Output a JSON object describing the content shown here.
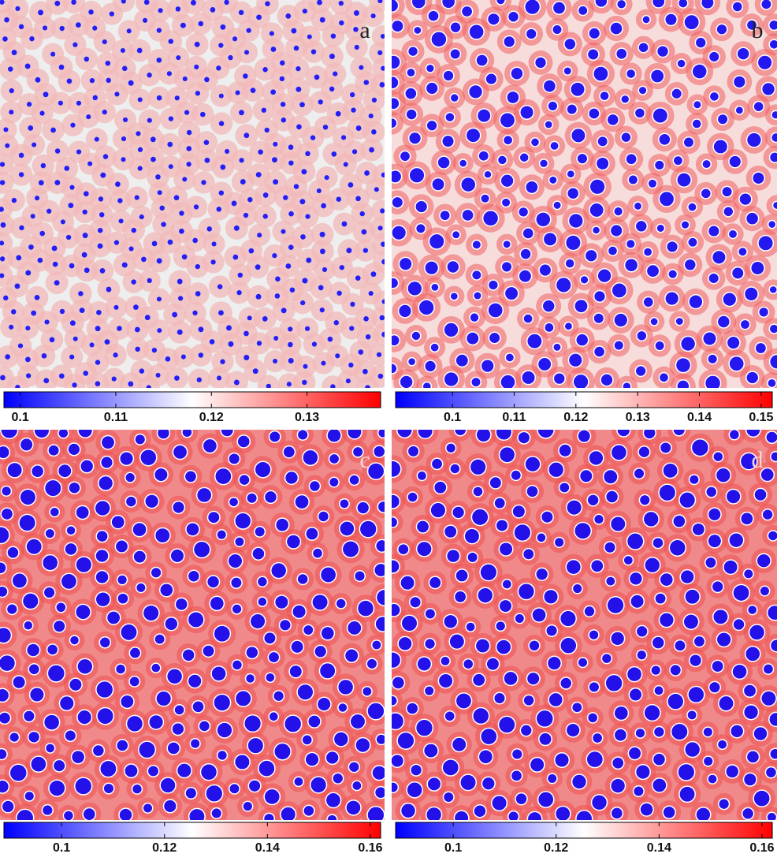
{
  "chart_data": [
    {
      "type": "heatmap",
      "label": "a",
      "colormap": [
        "#0000ff",
        "#ffffff",
        "#ff0000"
      ],
      "colorbar": {
        "lim": [
          0.0983,
          0.1377
        ],
        "ticks": [
          0.1,
          0.11,
          0.12,
          0.13
        ]
      }
    },
    {
      "type": "heatmap",
      "label": "b",
      "colormap": [
        "#0000ff",
        "#ffffff",
        "#ff0000"
      ],
      "colorbar": {
        "lim": [
          0.0908,
          0.1518
        ],
        "ticks": [
          0.1,
          0.11,
          0.12,
          0.13,
          0.14,
          0.15
        ]
      }
    },
    {
      "type": "heatmap",
      "label": "c",
      "colormap": [
        "#0000ff",
        "#ffffff",
        "#ff0000"
      ],
      "colorbar": {
        "lim": [
          0.0888,
          0.162
        ],
        "ticks": [
          0.1,
          0.12,
          0.14,
          0.16
        ]
      }
    },
    {
      "type": "heatmap",
      "label": "d",
      "colormap": [
        "#0000ff",
        "#ffffff",
        "#ff0000"
      ],
      "colorbar": {
        "lim": [
          0.0888,
          0.162
        ],
        "ticks": [
          0.1,
          0.12,
          0.14,
          0.16
        ]
      }
    }
  ]
}
